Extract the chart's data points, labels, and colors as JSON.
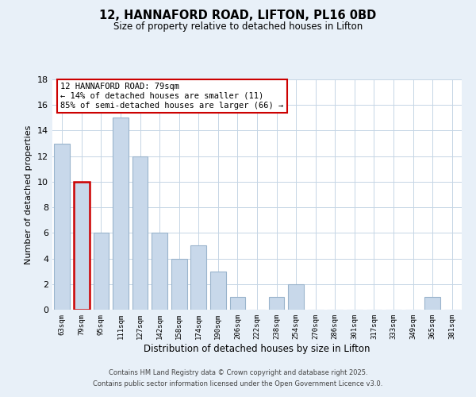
{
  "title": "12, HANNAFORD ROAD, LIFTON, PL16 0BD",
  "subtitle": "Size of property relative to detached houses in Lifton",
  "xlabel": "Distribution of detached houses by size in Lifton",
  "ylabel": "Number of detached properties",
  "bins": [
    "63sqm",
    "79sqm",
    "95sqm",
    "111sqm",
    "127sqm",
    "142sqm",
    "158sqm",
    "174sqm",
    "190sqm",
    "206sqm",
    "222sqm",
    "238sqm",
    "254sqm",
    "270sqm",
    "286sqm",
    "301sqm",
    "317sqm",
    "333sqm",
    "349sqm",
    "365sqm",
    "381sqm"
  ],
  "values": [
    13,
    10,
    6,
    15,
    12,
    6,
    4,
    5,
    3,
    1,
    0,
    1,
    2,
    0,
    0,
    0,
    0,
    0,
    0,
    1,
    0
  ],
  "highlight_index": 1,
  "bar_color": "#c8d8ea",
  "highlight_edge_color": "#cc0000",
  "normal_edge_color": "#9ab4cc",
  "annotation_line1": "12 HANNAFORD ROAD: 79sqm",
  "annotation_line2": "← 14% of detached houses are smaller (11)",
  "annotation_line3": "85% of semi-detached houses are larger (66) →",
  "annotation_box_edge_color": "#cc0000",
  "ylim": [
    0,
    18
  ],
  "yticks": [
    0,
    2,
    4,
    6,
    8,
    10,
    12,
    14,
    16,
    18
  ],
  "footer_line1": "Contains HM Land Registry data © Crown copyright and database right 2025.",
  "footer_line2": "Contains public sector information licensed under the Open Government Licence v3.0.",
  "bg_color": "#e8f0f8",
  "plot_bg_color": "#ffffff",
  "grid_color": "#c5d5e5"
}
